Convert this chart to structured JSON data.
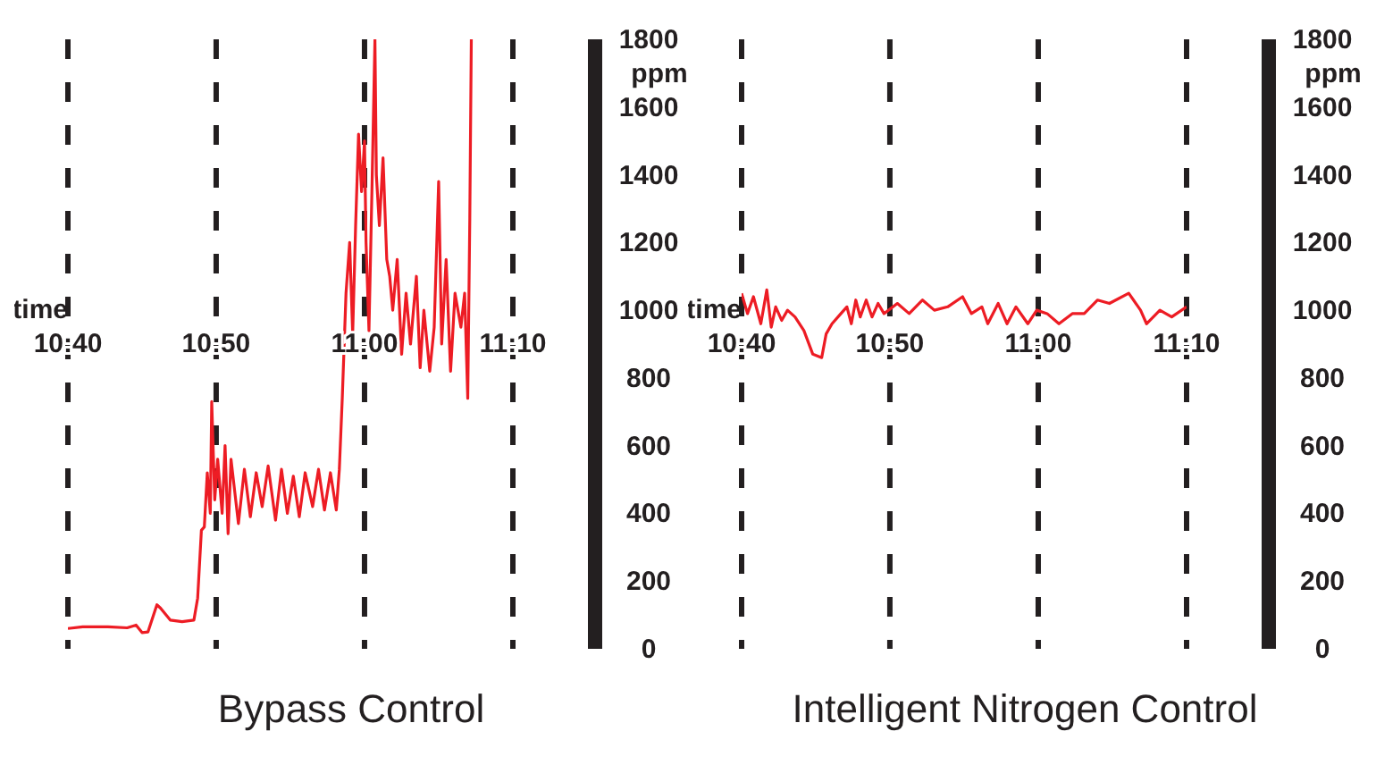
{
  "chart_data": [
    {
      "type": "line",
      "title": "Bypass Control",
      "xlabel": "time",
      "ylabel": "ppm",
      "xlim": [
        10.6667,
        11.1667
      ],
      "xticks": [
        {
          "value": 10.6667,
          "label": "10:40"
        },
        {
          "value": 10.8333,
          "label": "10:50"
        },
        {
          "value": 11,
          "label": "11:00"
        },
        {
          "value": 11.1667,
          "label": "11:10"
        }
      ],
      "ylim": [
        0,
        1800
      ],
      "yticks": [
        0,
        200,
        400,
        600,
        800,
        1000,
        1200,
        1400,
        1600,
        1800
      ],
      "grid": "x",
      "legend": false,
      "marker": "none",
      "line_style": "solid",
      "series": [
        {
          "color": "#ed1c24",
          "x": [
            10.6667,
            10.6833,
            10.7117,
            10.7333,
            10.7433,
            10.75,
            10.7567,
            10.7667,
            10.7708,
            10.7817,
            10.795,
            10.8083,
            10.8125,
            10.8167,
            10.82,
            10.8233,
            10.8267,
            10.8283,
            10.8317,
            10.835,
            10.84,
            10.8433,
            10.8467,
            10.85,
            10.8583,
            10.865,
            10.8717,
            10.8783,
            10.885,
            10.8917,
            10.9,
            10.9067,
            10.9133,
            10.92,
            10.9267,
            10.9333,
            10.9417,
            10.9483,
            10.955,
            10.9617,
            10.9683,
            10.9717,
            10.975,
            10.9792,
            10.9833,
            10.9867,
            10.99,
            10.9933,
            10.9967,
            11.0,
            11.0017,
            11.005,
            11.0083,
            11.0117,
            11.0133,
            11.0167,
            11.0208,
            11.025,
            11.0283,
            11.0317,
            11.0367,
            11.0417,
            11.0467,
            11.0517,
            11.0583,
            11.0625,
            11.0667,
            11.0733,
            11.0783,
            11.0833,
            11.0867,
            11.0917,
            11.0967,
            11.1017,
            11.1083,
            11.1125,
            11.116,
            11.1183,
            11.12
          ],
          "values": [
            60,
            65,
            65,
            62,
            70,
            48,
            50,
            130,
            120,
            85,
            80,
            85,
            150,
            350,
            360,
            520,
            400,
            730,
            440,
            560,
            400,
            600,
            340,
            560,
            370,
            530,
            390,
            520,
            420,
            540,
            380,
            530,
            400,
            510,
            390,
            520,
            420,
            530,
            410,
            520,
            410,
            530,
            740,
            1050,
            1200,
            930,
            1250,
            1520,
            1350,
            1500,
            1200,
            940,
            1350,
            1800,
            1400,
            1250,
            1450,
            1150,
            1100,
            1000,
            1150,
            870,
            1050,
            900,
            1100,
            830,
            1000,
            820,
            950,
            1380,
            900,
            1150,
            820,
            1050,
            950,
            1050,
            740,
            1270,
            1800
          ]
        }
      ]
    },
    {
      "type": "line",
      "title": "Intelligent Nitrogen Control",
      "xlabel": "time",
      "ylabel": "ppm",
      "xlim": [
        10.6667,
        11.1667
      ],
      "xticks": [
        {
          "value": 10.6667,
          "label": "10:40"
        },
        {
          "value": 10.8333,
          "label": "10:50"
        },
        {
          "value": 11,
          "label": "11:00"
        },
        {
          "value": 11.1667,
          "label": "11:10"
        }
      ],
      "ylim": [
        0,
        1800
      ],
      "yticks": [
        0,
        200,
        400,
        600,
        800,
        1000,
        1200,
        1400,
        1600,
        1800
      ],
      "grid": "x",
      "legend": false,
      "marker": "none",
      "line_style": "solid",
      "series": [
        {
          "color": "#ed1c24",
          "x": [
            10.6667,
            10.6733,
            10.68,
            10.6883,
            10.695,
            10.7,
            10.705,
            10.7117,
            10.7183,
            10.7267,
            10.7367,
            10.7467,
            10.7567,
            10.7617,
            10.7683,
            10.7783,
            10.785,
            10.79,
            10.795,
            10.8,
            10.8067,
            10.8133,
            10.82,
            10.8267,
            10.8417,
            10.855,
            10.87,
            10.8833,
            10.8983,
            10.915,
            10.925,
            10.9367,
            10.9433,
            10.955,
            10.965,
            10.975,
            10.9883,
            10.9983,
            11.01,
            11.0233,
            11.0383,
            11.0517,
            11.0667,
            11.08,
            11.1017,
            11.115,
            11.1217,
            11.1367,
            11.15,
            11.1667
          ],
          "values": [
            1050,
            990,
            1040,
            960,
            1060,
            950,
            1010,
            970,
            1000,
            980,
            940,
            870,
            860,
            930,
            960,
            990,
            1010,
            960,
            1030,
            980,
            1030,
            980,
            1020,
            990,
            1020,
            990,
            1030,
            1000,
            1010,
            1040,
            990,
            1010,
            960,
            1020,
            960,
            1010,
            960,
            1000,
            990,
            960,
            990,
            990,
            1030,
            1020,
            1050,
            1000,
            960,
            1000,
            980,
            1010
          ]
        }
      ]
    }
  ]
}
